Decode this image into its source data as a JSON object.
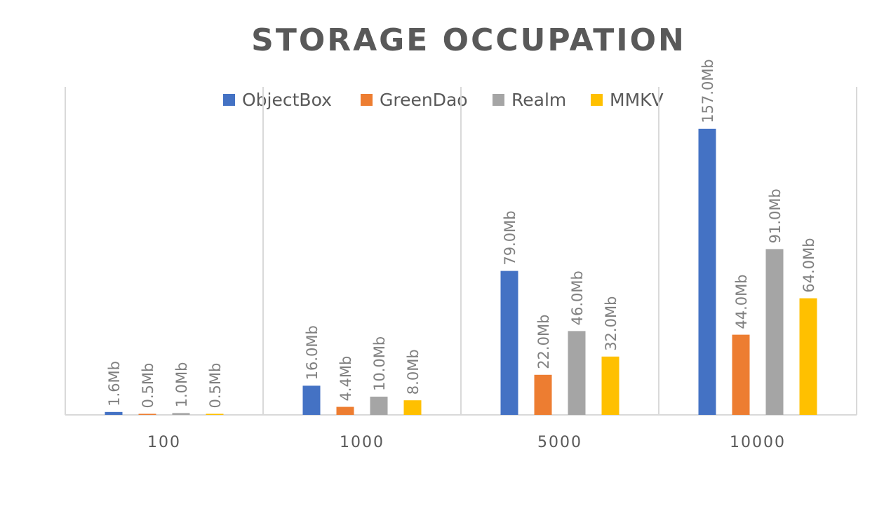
{
  "chart_data": {
    "type": "bar",
    "title": "STORAGE OCCUPATION",
    "xlabel": "",
    "ylabel": "",
    "categories": [
      "100",
      "1000",
      "5000",
      "10000"
    ],
    "series": [
      {
        "name": "ObjectBox",
        "color": "#4472c4",
        "values": [
          1.6,
          16.0,
          79.0,
          157.0
        ],
        "labels": [
          "1.6Mb",
          "16.0Mb",
          "79.0Mb",
          "157.0Mb"
        ]
      },
      {
        "name": "GreenDao",
        "color": "#ed7d31",
        "values": [
          0.5,
          4.4,
          22.0,
          44.0
        ],
        "labels": [
          "0.5Mb",
          "4.4Mb",
          "22.0Mb",
          "44.0Mb"
        ]
      },
      {
        "name": "Realm",
        "color": "#a5a5a5",
        "values": [
          1.0,
          10.0,
          46.0,
          91.0
        ],
        "labels": [
          "1.0Mb",
          "10.0Mb",
          "46.0Mb",
          "91.0Mb"
        ]
      },
      {
        "name": "MMKV",
        "color": "#ffc000",
        "values": [
          0.5,
          8.0,
          32.0,
          64.0
        ],
        "labels": [
          "0.5Mb",
          "8.0Mb",
          "32.0Mb",
          "64.0Mb"
        ]
      }
    ],
    "ylim": [
      0,
      180
    ],
    "grid": "vertical lines between categories",
    "legend_position": "top"
  }
}
